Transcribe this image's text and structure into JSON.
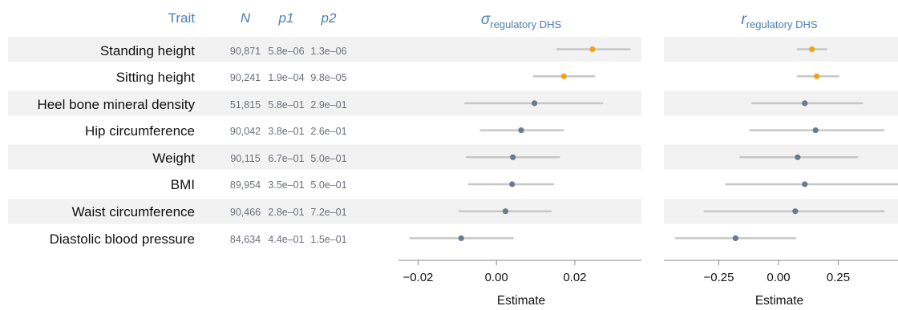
{
  "table": {
    "headers": {
      "trait": "Trait",
      "n": "N",
      "p1": "p1",
      "p2": "p2"
    },
    "rows": [
      {
        "trait": "Standing height",
        "n": "90,871",
        "p1": "5.8e–06",
        "p2": "1.3e–06"
      },
      {
        "trait": "Sitting height",
        "n": "90,241",
        "p1": "1.9e–04",
        "p2": "9.8e–05"
      },
      {
        "trait": "Heel bone mineral density",
        "n": "51,815",
        "p1": "5.8e–01",
        "p2": "2.9e–01"
      },
      {
        "trait": "Hip circumference",
        "n": "90,042",
        "p1": "3.8e–01",
        "p2": "2.6e–01"
      },
      {
        "trait": "Weight",
        "n": "90,115",
        "p1": "6.7e–01",
        "p2": "5.0e–01"
      },
      {
        "trait": "BMI",
        "n": "89,954",
        "p1": "3.5e–01",
        "p2": "5.0e–01"
      },
      {
        "trait": "Waist circumference",
        "n": "90,466",
        "p1": "2.8e–01",
        "p2": "7.2e–01"
      },
      {
        "trait": "Diastolic blood pressure",
        "n": "84,634",
        "p1": "4.4e–01",
        "p2": "1.5e–01"
      }
    ]
  },
  "colors": {
    "header_blue": "#4a7fb5",
    "significant_point": "#f0a317",
    "nonsignificant_point": "#6b7a8c",
    "interval": "#c7c7c7",
    "row_band": "#f2f2f2"
  },
  "chart_data": [
    {
      "type": "forest",
      "title_symbol": "σ",
      "title_subscript": "regulatory DHS",
      "xlabel": "Estimate",
      "xlim": [
        -0.025,
        0.037
      ],
      "xticks": [
        -0.02,
        0.0,
        0.02
      ],
      "tick_labels": [
        "−0.02",
        "0.00",
        "0.02"
      ],
      "grid": false,
      "estimates": [
        0.0245,
        0.0172,
        0.0097,
        0.0063,
        0.0042,
        0.004,
        0.0023,
        -0.009
      ],
      "lower": [
        0.0155,
        0.0095,
        -0.008,
        -0.004,
        -0.0075,
        -0.007,
        -0.0095,
        -0.022
      ],
      "upper": [
        0.034,
        0.025,
        0.027,
        0.017,
        0.016,
        0.0145,
        0.0138,
        0.0042
      ],
      "significant": [
        true,
        true,
        false,
        false,
        false,
        false,
        false,
        false
      ]
    },
    {
      "type": "forest",
      "title_symbol": "r",
      "title_subscript": "regulatory DHS",
      "xlabel": "Estimate",
      "xlim": [
        -0.48,
        0.5
      ],
      "xticks": [
        -0.25,
        0.0,
        0.25
      ],
      "tick_labels": [
        "−0.25",
        "0.00",
        "0.25"
      ],
      "grid": false,
      "estimates": [
        0.14,
        0.16,
        0.11,
        0.155,
        0.08,
        0.11,
        0.07,
        -0.18
      ],
      "lower": [
        0.08,
        0.08,
        -0.11,
        -0.12,
        -0.16,
        -0.22,
        -0.31,
        -0.43
      ],
      "upper": [
        0.2,
        0.25,
        0.35,
        0.44,
        0.33,
        0.5,
        0.44,
        0.07
      ],
      "significant": [
        true,
        true,
        false,
        false,
        false,
        false,
        false,
        false
      ]
    }
  ]
}
